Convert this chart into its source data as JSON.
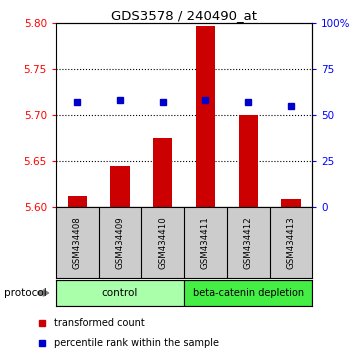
{
  "title": "GDS3578 / 240490_at",
  "samples": [
    "GSM434408",
    "GSM434409",
    "GSM434410",
    "GSM434411",
    "GSM434412",
    "GSM434413"
  ],
  "red_values": [
    5.612,
    5.645,
    5.675,
    5.797,
    5.7,
    5.609
  ],
  "blue_percentiles": [
    57,
    58,
    57,
    58,
    57,
    55
  ],
  "ylim_left": [
    5.6,
    5.8
  ],
  "ylim_right": [
    0,
    100
  ],
  "left_ticks": [
    5.6,
    5.65,
    5.7,
    5.75,
    5.8
  ],
  "right_ticks": [
    0,
    25,
    50,
    75,
    100
  ],
  "right_tick_labels": [
    "0",
    "25",
    "50",
    "75",
    "100%"
  ],
  "bar_color": "#cc0000",
  "dot_color": "#0000cc",
  "bg_color": "#ffffff",
  "sample_box_color": "#cccccc",
  "control_color": "#aaffaa",
  "depletion_color": "#44ee44",
  "legend_red_label": "transformed count",
  "legend_blue_label": "percentile rank within the sample",
  "protocol_label": "protocol"
}
